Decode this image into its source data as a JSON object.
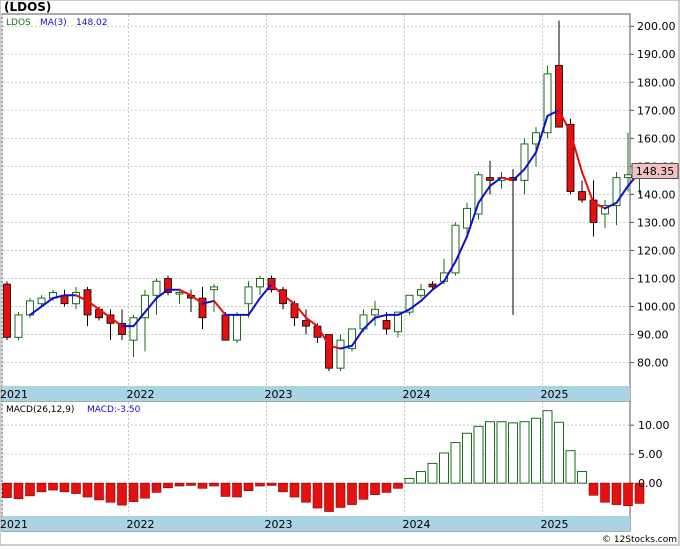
{
  "header": {
    "title": "(LDOS)",
    "footer": "© 12Stocks.com"
  },
  "colors": {
    "up": "#1d6b1d",
    "down": "#e51010",
    "ma_up": "#1010c8",
    "ma_down": "#e51010",
    "axis_band": "#aad4e3",
    "grid": "#c8c8c8",
    "price_tag_bg": "#f2c2c2"
  },
  "price_panel": {
    "legend_symbol": "LDOS",
    "legend_ma": "MA(3)",
    "legend_ma_value": "148.02",
    "last_price": "148.35",
    "ylim": [
      72,
      204
    ],
    "ticks": [
      80,
      90,
      100,
      110,
      120,
      130,
      140,
      150,
      160,
      170,
      180,
      190,
      200
    ],
    "tick_labels": [
      "80.00",
      "90.00",
      "100.00",
      "110.00",
      "120.00",
      "130.00",
      "140.00",
      "150.00",
      "160.00",
      "170.00",
      "180.00",
      "190.00",
      "200.00"
    ]
  },
  "macd_panel": {
    "legend_label": "MACD(26,12,9)",
    "legend_value": "MACD:-3.50",
    "ylim": [
      -5.5,
      14
    ],
    "ticks": [
      0,
      5,
      10
    ],
    "tick_labels": [
      "0.00",
      "5.00",
      "10.00"
    ]
  },
  "x_axis": {
    "labels": [
      "2021",
      "2022",
      "2023",
      "2024",
      "2025"
    ],
    "label_index": [
      0,
      11,
      23,
      35,
      47
    ]
  },
  "chart_data": {
    "type": "candlestick",
    "title": "(LDOS)",
    "period": "monthly",
    "start_label": "2021",
    "ohlc": [
      [
        108,
        109,
        88,
        89
      ],
      [
        89,
        98,
        88,
        97
      ],
      [
        97,
        103,
        96,
        102
      ],
      [
        101,
        104,
        100,
        103
      ],
      [
        103,
        106,
        102,
        105
      ],
      [
        104,
        106,
        100,
        101
      ],
      [
        101,
        107,
        99,
        105
      ],
      [
        106,
        107,
        93,
        97
      ],
      [
        99,
        100,
        95,
        96
      ],
      [
        97,
        99,
        88,
        94
      ],
      [
        94,
        99,
        88,
        90
      ],
      [
        88,
        97,
        82,
        96
      ],
      [
        96,
        106,
        84,
        104
      ],
      [
        104,
        110,
        97,
        109
      ],
      [
        110,
        111,
        104,
        105
      ],
      [
        105,
        106,
        101,
        105
      ],
      [
        104,
        106,
        98,
        103
      ],
      [
        103,
        107,
        92,
        96
      ],
      [
        106,
        108,
        98,
        107
      ],
      [
        97,
        98,
        88,
        88
      ],
      [
        88,
        98,
        87,
        97
      ],
      [
        101,
        109,
        96,
        107
      ],
      [
        107,
        111,
        104,
        110
      ],
      [
        110,
        111,
        105,
        106
      ],
      [
        106,
        107,
        99,
        101
      ],
      [
        101,
        102,
        93,
        96
      ],
      [
        95,
        99,
        90,
        93
      ],
      [
        93,
        94,
        87,
        89
      ],
      [
        90,
        90,
        77,
        78
      ],
      [
        78,
        90,
        77,
        88
      ],
      [
        85,
        92,
        84,
        92
      ],
      [
        92,
        99,
        91,
        97
      ],
      [
        97,
        102,
        93,
        99
      ],
      [
        95,
        98,
        90,
        92
      ],
      [
        91,
        98,
        89,
        98
      ],
      [
        98,
        104,
        97,
        104
      ],
      [
        104,
        108,
        103,
        106
      ],
      [
        108,
        109,
        106,
        107
      ],
      [
        109,
        117,
        108,
        112
      ],
      [
        112,
        130,
        111,
        129
      ],
      [
        128,
        137,
        126,
        135
      ],
      [
        133,
        148,
        131,
        147
      ],
      [
        146,
        152,
        140,
        145
      ],
      [
        145,
        148,
        142,
        146
      ],
      [
        146,
        149,
        97,
        145
      ],
      [
        145,
        160,
        140,
        158
      ],
      [
        158,
        164,
        150,
        162
      ],
      [
        162,
        186,
        160,
        183
      ],
      [
        186,
        202,
        164,
        164
      ],
      [
        165,
        167,
        140,
        141
      ],
      [
        141,
        145,
        137,
        138
      ],
      [
        138,
        145,
        125,
        130
      ],
      [
        133,
        138,
        128,
        136
      ],
      [
        136,
        148,
        129,
        146
      ],
      [
        146,
        162,
        141,
        147
      ],
      [
        147,
        151,
        140,
        148
      ]
    ],
    "ma3": [
      null,
      null,
      97,
      100,
      103,
      104,
      104,
      102,
      99,
      96,
      93,
      93,
      98,
      103,
      106,
      106,
      104,
      101,
      102,
      97,
      97,
      97,
      103,
      108,
      104,
      101,
      96,
      93,
      86,
      85,
      86,
      92,
      96,
      97,
      97,
      99,
      102,
      106,
      109,
      116,
      125,
      137,
      143,
      146,
      145,
      149,
      155,
      168,
      170,
      162,
      148,
      137,
      135,
      137,
      143,
      148
    ],
    "macd": [
      -2.5,
      -2.7,
      -2.2,
      -1.5,
      -1.2,
      -1.5,
      -1.8,
      -2.4,
      -2.9,
      -3.3,
      -3.8,
      -3.2,
      -2.6,
      -1.6,
      -0.8,
      -0.5,
      -0.4,
      -0.9,
      -0.5,
      -2.3,
      -2.4,
      -1.3,
      -0.5,
      -0.4,
      -1.5,
      -2.4,
      -3.3,
      -4.3,
      -4.9,
      -4.2,
      -3.7,
      -2.8,
      -2.0,
      -1.6,
      -0.9,
      0.8,
      2.0,
      3.4,
      5.2,
      7.0,
      8.6,
      9.8,
      10.6,
      10.6,
      10.4,
      10.6,
      11.2,
      12.5,
      10.5,
      5.6,
      2.0,
      -2.1,
      -3.3,
      -3.7,
      -3.9,
      -3.5
    ]
  }
}
